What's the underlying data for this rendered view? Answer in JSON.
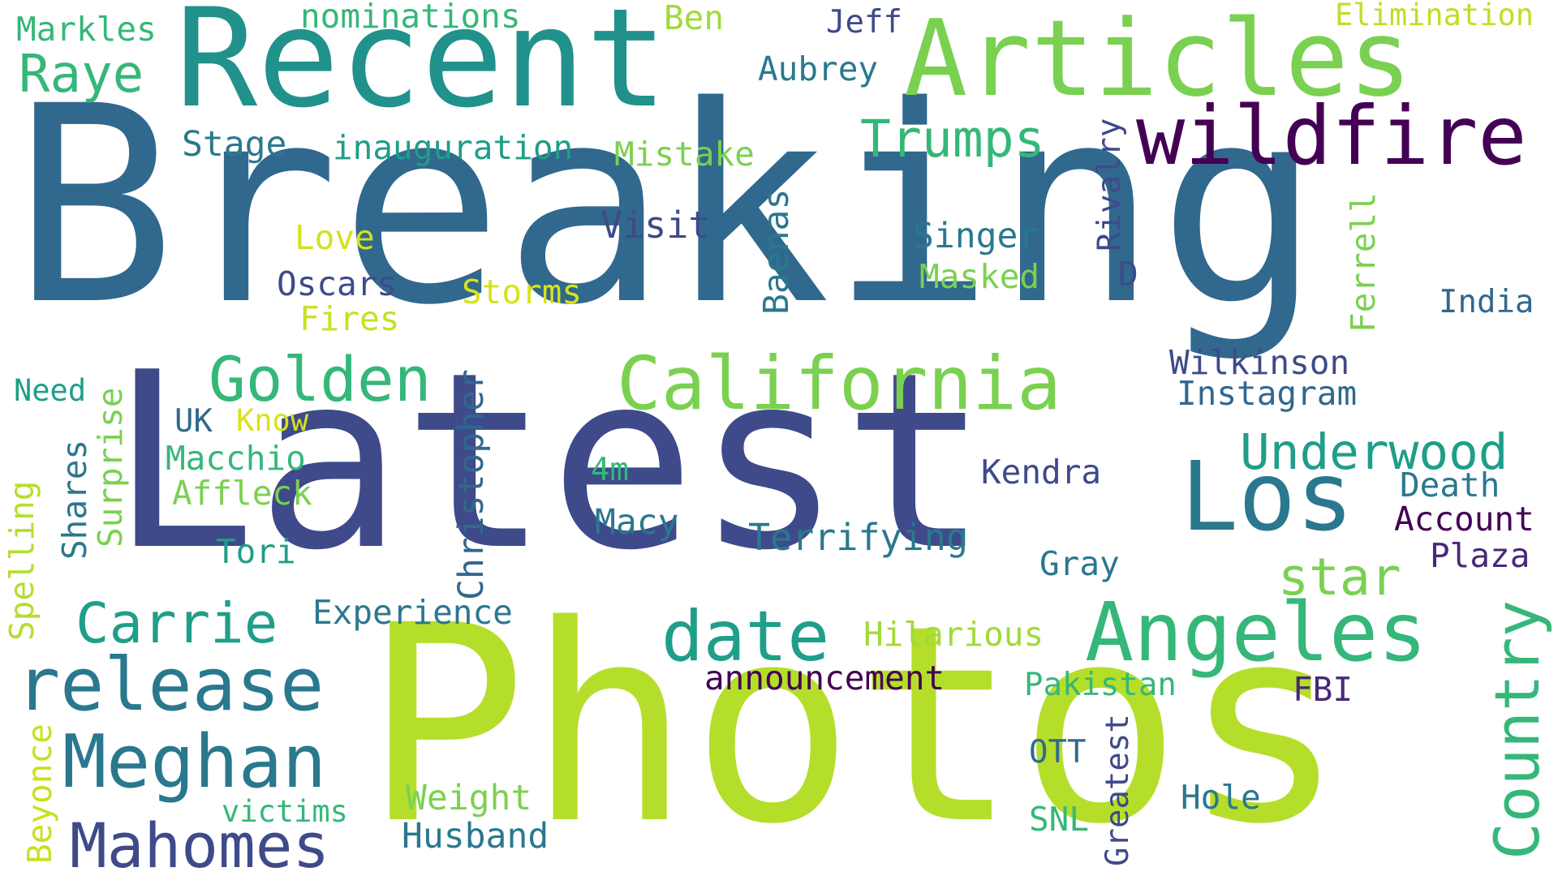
{
  "words": {
    "breaking": {
      "text": "Breaking",
      "color": "#31688e"
    },
    "latest": {
      "text": "Latest",
      "color": "#3e4a89"
    },
    "photos": {
      "text": "Photos",
      "color": "#b5de2b"
    },
    "recent": {
      "text": "Recent",
      "color": "#21918c"
    },
    "articles": {
      "text": "Articles",
      "color": "#7ad151"
    },
    "wildfire": {
      "text": "wildfire",
      "color": "#440154"
    },
    "california": {
      "text": "California",
      "color": "#7ad151"
    },
    "los": {
      "text": "Los",
      "color": "#2a788e"
    },
    "angeles": {
      "text": "Angeles",
      "color": "#35b779"
    },
    "release": {
      "text": "release",
      "color": "#2a788e"
    },
    "meghan": {
      "text": "Meghan",
      "color": "#2a788e"
    },
    "mahomes": {
      "text": "Mahomes",
      "color": "#3e4a89"
    },
    "date": {
      "text": "date",
      "color": "#1f9e89"
    },
    "golden": {
      "text": "Golden",
      "color": "#35b779"
    },
    "carrie": {
      "text": "Carrie",
      "color": "#1f9e89"
    },
    "raye": {
      "text": "Raye",
      "color": "#35b779"
    },
    "trumps": {
      "text": "Trumps",
      "color": "#35b779"
    },
    "underwood": {
      "text": "Underwood",
      "color": "#1f9e89"
    },
    "country": {
      "text": "Country",
      "color": "#35b779"
    },
    "star": {
      "text": "star",
      "color": "#7ad151"
    },
    "markles": {
      "text": "Markles",
      "color": "#35b779"
    },
    "nominations": {
      "text": "nominations",
      "color": "#35b779"
    },
    "ben": {
      "text": "Ben",
      "color": "#a0da39"
    },
    "jeff": {
      "text": "Jeff",
      "color": "#3e4a89"
    },
    "elimination": {
      "text": "Elimination",
      "color": "#bddf26"
    },
    "aubrey": {
      "text": "Aubrey",
      "color": "#2a788e"
    },
    "stage": {
      "text": "Stage",
      "color": "#2a788e"
    },
    "inauguration": {
      "text": "inauguration",
      "color": "#1f9e89"
    },
    "mistake": {
      "text": "Mistake",
      "color": "#7ad151"
    },
    "rivalry": {
      "text": "Rivalry",
      "color": "#3e4a89"
    },
    "visit": {
      "text": "Visit",
      "color": "#3e4a89"
    },
    "love": {
      "text": "Love",
      "color": "#d2e21b"
    },
    "oscars": {
      "text": "Oscars",
      "color": "#3e4a89"
    },
    "fires": {
      "text": "Fires",
      "color": "#c8e020"
    },
    "storms": {
      "text": "Storms",
      "color": "#d8e219"
    },
    "baenas": {
      "text": "Baenas",
      "color": "#2a788e"
    },
    "singer": {
      "text": "Singer",
      "color": "#2a788e"
    },
    "masked": {
      "text": "Masked",
      "color": "#7ad151"
    },
    "d": {
      "text": "D",
      "color": "#3e4a89"
    },
    "ferrell": {
      "text": "Ferrell",
      "color": "#7ad151"
    },
    "india": {
      "text": "India",
      "color": "#31688e"
    },
    "wilkinson": {
      "text": "Wilkinson",
      "color": "#3e4a89"
    },
    "instagram": {
      "text": "Instagram",
      "color": "#31688e"
    },
    "need": {
      "text": "Need",
      "color": "#1f9e89"
    },
    "uk": {
      "text": "UK",
      "color": "#31688e"
    },
    "know": {
      "text": "Know",
      "color": "#d8e219"
    },
    "macchio": {
      "text": "Macchio",
      "color": "#35b779"
    },
    "affleck": {
      "text": "Affleck",
      "color": "#7ad151"
    },
    "tori": {
      "text": "Tori",
      "color": "#1f9e89"
    },
    "shares": {
      "text": "Shares",
      "color": "#2a788e"
    },
    "surprise": {
      "text": "Surprise",
      "color": "#7ad151"
    },
    "christopher": {
      "text": "Christopher",
      "color": "#31688e"
    },
    "spelling": {
      "text": "Spelling",
      "color": "#b5de2b"
    },
    "fourm": {
      "text": "4m",
      "color": "#35b779"
    },
    "macy": {
      "text": "Macy",
      "color": "#2a788e"
    },
    "terrifying": {
      "text": "Terrifying",
      "color": "#2a788e"
    },
    "kendra": {
      "text": "Kendra",
      "color": "#3e4a89"
    },
    "death": {
      "text": "Death",
      "color": "#2a788e"
    },
    "account": {
      "text": "Account",
      "color": "#440154"
    },
    "plaza": {
      "text": "Plaza",
      "color": "#482878"
    },
    "gray": {
      "text": "Gray",
      "color": "#2a788e"
    },
    "experience": {
      "text": "Experience",
      "color": "#2a788e"
    },
    "hilarious": {
      "text": "Hilarious",
      "color": "#a0da39"
    },
    "announcement": {
      "text": "announcement",
      "color": "#440154"
    },
    "pakistan": {
      "text": "Pakistan",
      "color": "#35b779"
    },
    "fbi": {
      "text": "FBI",
      "color": "#482878"
    },
    "beyonce": {
      "text": "Beyonce",
      "color": "#c8e020"
    },
    "victims": {
      "text": "victims",
      "color": "#35b779"
    },
    "weight": {
      "text": "Weight",
      "color": "#7ad151"
    },
    "husband": {
      "text": "Husband",
      "color": "#2a788e"
    },
    "ott": {
      "text": "OTT",
      "color": "#31688e"
    },
    "greatest": {
      "text": "Greatest",
      "color": "#3e4a89"
    },
    "snl": {
      "text": "SNL",
      "color": "#35b779"
    },
    "hole": {
      "text": "Hole",
      "color": "#2a788e"
    }
  }
}
